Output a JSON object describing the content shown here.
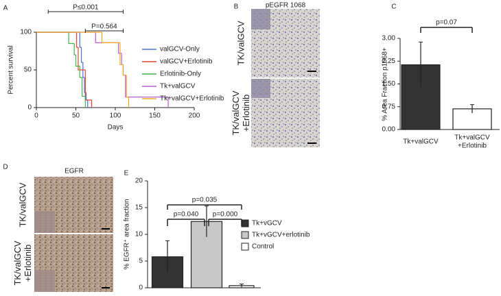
{
  "panel_labels": [
    "A",
    "B",
    "C",
    "D",
    "E"
  ],
  "image_panels": [
    {
      "title": "pEGFR 1068",
      "rows": [
        "TK/valGCV",
        "TK/valGCV +Erlotinib"
      ]
    },
    {
      "title": "EGFR",
      "rows": [
        "TK/valGCV",
        "TK/valGCV +Erlotinib"
      ]
    }
  ],
  "chart_data": [
    {
      "type": "step",
      "xlabel": "Days",
      "ylabel": "Percent survival",
      "xlim": [
        0,
        200
      ],
      "ylim": [
        0,
        100
      ],
      "xticks": [
        0,
        50,
        100,
        150,
        200
      ],
      "yticks": [
        0,
        50,
        100
      ],
      "annotations": [
        "P≤0.001",
        "P=0.564"
      ],
      "series": [
        {
          "name": "valGCV-Only",
          "color": "#4a6fd6",
          "x": [
            0,
            55,
            57,
            59,
            61,
            63,
            65
          ],
          "values": [
            100,
            80,
            60,
            40,
            20,
            10,
            0
          ]
        },
        {
          "name": "valGCV+Erlotinib",
          "color": "#e8402c",
          "x": [
            0,
            51,
            53,
            62,
            70
          ],
          "values": [
            100,
            80,
            50,
            10,
            0
          ]
        },
        {
          "name": "Erlotinib-Only",
          "color": "#3fb24a",
          "x": [
            0,
            41,
            48,
            50,
            55,
            58,
            62
          ],
          "values": [
            100,
            85,
            70,
            55,
            40,
            15,
            0
          ]
        },
        {
          "name": "Tk+valGCV",
          "color": "#b65fd6",
          "x": [
            0,
            75,
            104,
            108,
            110,
            113,
            167
          ],
          "values": [
            100,
            86,
            72,
            57,
            43,
            14,
            0
          ]
        },
        {
          "name": "Tk+valGCV+Erlotinib",
          "color": "#f5a623",
          "x": [
            0,
            83,
            106,
            110,
            114,
            117
          ],
          "values": [
            100,
            86,
            57,
            43,
            14,
            0
          ]
        }
      ]
    },
    {
      "type": "bar",
      "ylabel": "% Area Fraction p1068+",
      "categories": [
        "Tk+valGCV",
        "Tk+valGCV +Erlotinib"
      ],
      "values": [
        2.13,
        0.68
      ],
      "errors": [
        0.75,
        0.14
      ],
      "colors": [
        "#333333",
        "#ffffff"
      ],
      "ylim": [
        0,
        3
      ],
      "yticks": [
        {
          "value": 0,
          "label": "0.00"
        },
        {
          "value": 0.75,
          "label": "0.75"
        },
        {
          "value": 1.5,
          "label": "1.50"
        },
        {
          "value": 2.25,
          "label": "2.25"
        },
        {
          "value": 3,
          "label": "3.00"
        }
      ],
      "annotations": [
        "p=0.07"
      ]
    },
    {
      "type": "bar",
      "legend": true,
      "ylabel": "% EGFR⁺ area fraction",
      "categories": [
        "Tk+vGCV",
        "Tk+vGCV+erlotinib",
        "Control"
      ],
      "values": [
        5.8,
        12.4,
        0.4
      ],
      "errors": [
        3.0,
        2.9,
        0.3
      ],
      "colors": [
        "#333333",
        "#c8c8c8",
        "#ffffff"
      ],
      "ylim": [
        0,
        20
      ],
      "yticks": [
        0,
        5,
        10,
        15,
        20
      ],
      "annotations": [
        "p=0.040",
        "p=0.000",
        "p=0.035"
      ]
    }
  ]
}
